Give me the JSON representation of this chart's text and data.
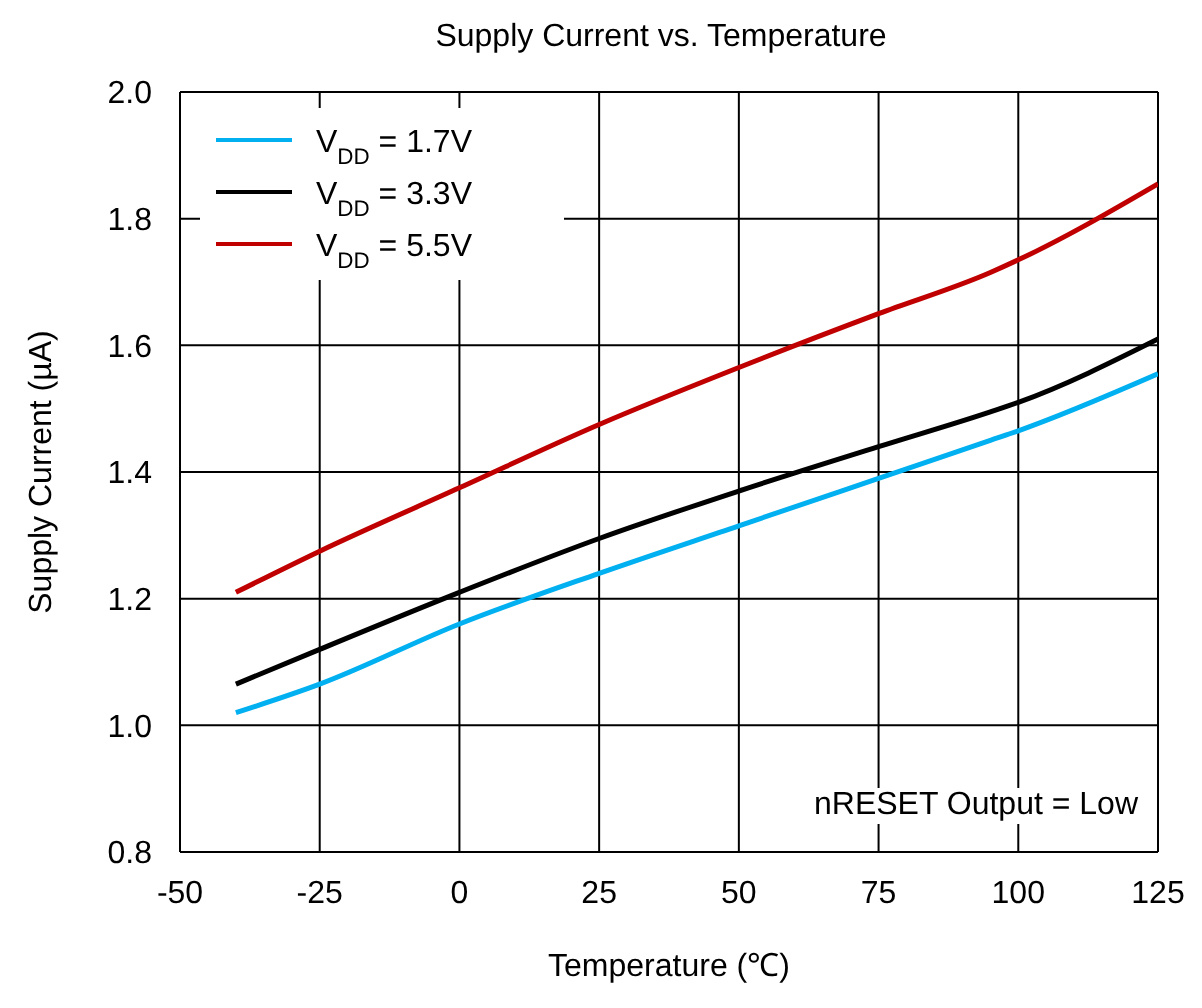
{
  "chart_data": {
    "type": "line",
    "title": "Supply Current vs. Temperature",
    "xlabel": "Temperature (℃)",
    "ylabel": "Supply Current (µA)",
    "x": [
      -40,
      -25,
      0,
      25,
      50,
      75,
      95,
      100,
      125
    ],
    "series": [
      {
        "name": "V$_{DD}$ = 1.7V",
        "color": "#00b0f0",
        "values": [
          1.02,
          1.065,
          1.16,
          1.24,
          1.315,
          1.39,
          1.45,
          1.465,
          1.555
        ]
      },
      {
        "name": "V$_{DD}$ = 3.3V",
        "color": "#000000",
        "values": [
          1.065,
          1.12,
          1.21,
          1.295,
          1.37,
          1.44,
          1.495,
          1.51,
          1.61
        ]
      },
      {
        "name": "V$_{DD}$ = 5.5V",
        "color": "#c00000",
        "values": [
          1.21,
          1.275,
          1.375,
          1.475,
          1.565,
          1.65,
          1.715,
          1.735,
          1.855
        ]
      }
    ],
    "xlim": [
      -50,
      125
    ],
    "xticks": [
      -50,
      -25,
      0,
      25,
      50,
      75,
      100,
      125
    ],
    "ylim": [
      0.8,
      2.0
    ],
    "yticks": [
      {
        "value": 0.8,
        "label": "0.8"
      },
      {
        "value": 1.0,
        "label": "1.0"
      },
      {
        "value": 1.2,
        "label": "1.2"
      },
      {
        "value": 1.4,
        "label": "1.4"
      },
      {
        "value": 1.6,
        "label": "1.6"
      },
      {
        "value": 1.8,
        "label": "1.8"
      },
      {
        "value": 2.0,
        "label": "2.0"
      }
    ],
    "grid": true,
    "legend": "top left",
    "marker": "none",
    "line_style": "solid",
    "annotations": [
      "nRESET Output = Low"
    ]
  }
}
